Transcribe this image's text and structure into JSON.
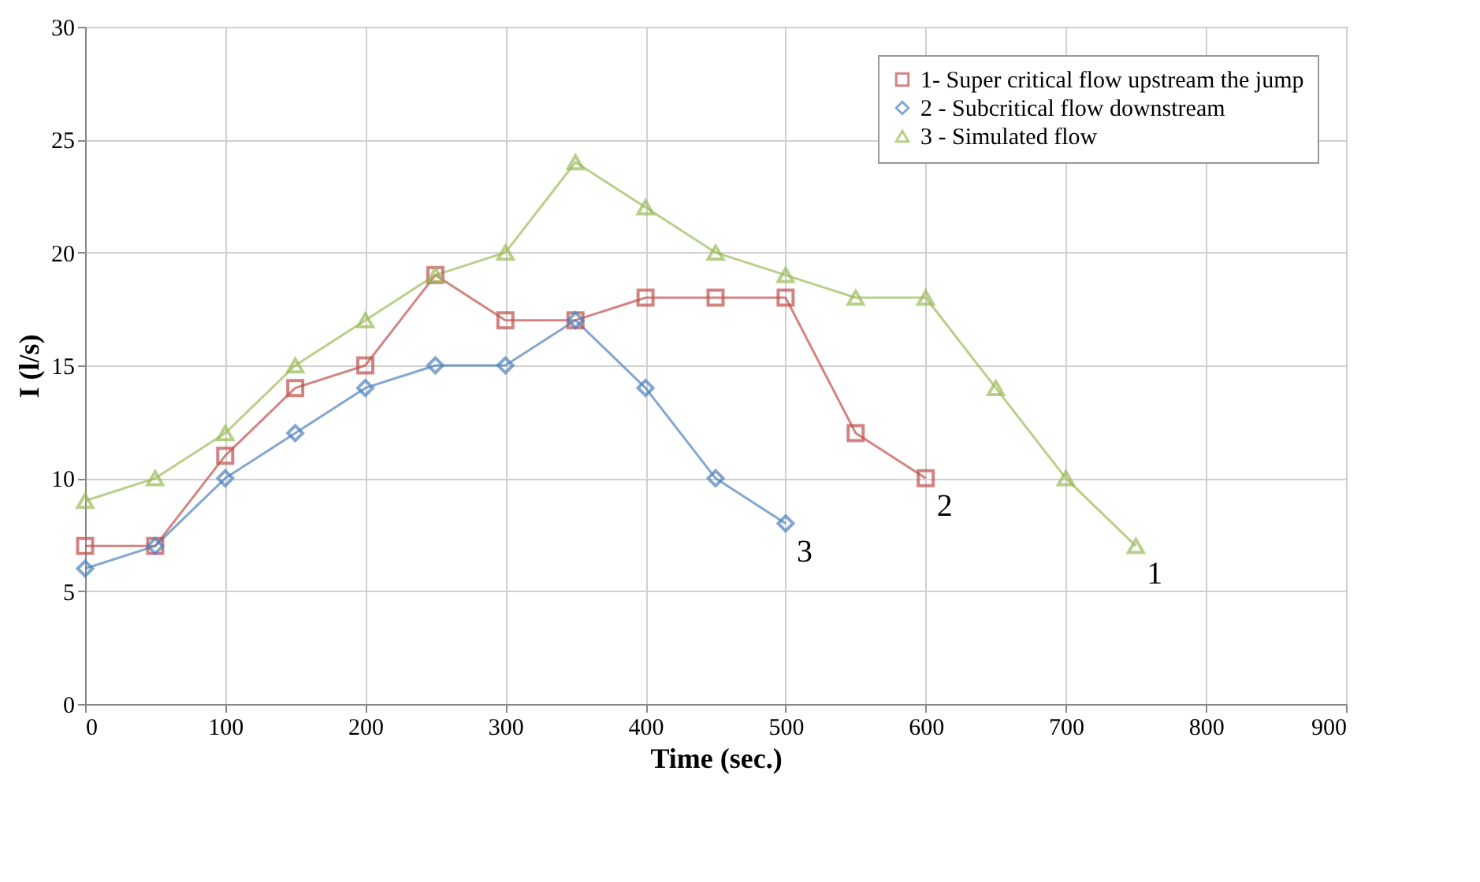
{
  "chart_data": {
    "type": "line",
    "xlabel": "Time (sec.)",
    "ylabel": "I (l/s)",
    "xlim": [
      0,
      900
    ],
    "ylim": [
      0,
      30
    ],
    "xticks": [
      0,
      100,
      200,
      300,
      400,
      500,
      600,
      700,
      800,
      900
    ],
    "yticks": [
      0,
      5,
      10,
      15,
      20,
      25,
      30
    ],
    "grid": true,
    "legend": "top right",
    "series": [
      {
        "name": "1- Super critical flow upstream the jump",
        "color": "#c0504d",
        "marker": "square",
        "x": [
          0,
          50,
          100,
          150,
          200,
          250,
          300,
          350,
          400,
          450,
          500,
          550,
          600
        ],
        "values": [
          7,
          7,
          11,
          14,
          15,
          19,
          17,
          17,
          18,
          18,
          18,
          12,
          10
        ]
      },
      {
        "name": "2 - Subcritical flow downstream",
        "color": "#4f81bd",
        "marker": "diamond",
        "x": [
          0,
          50,
          100,
          150,
          200,
          250,
          300,
          350,
          400,
          450,
          500
        ],
        "values": [
          6,
          7,
          10,
          12,
          14,
          15,
          15,
          17,
          14,
          10,
          8
        ]
      },
      {
        "name": "3 - Simulated flow",
        "color": "#9bbb59",
        "marker": "triangle",
        "x": [
          0,
          50,
          100,
          150,
          200,
          250,
          300,
          350,
          400,
          450,
          500,
          550,
          600,
          650,
          700,
          750
        ],
        "values": [
          9,
          10,
          12,
          15,
          17,
          19,
          20,
          24,
          22,
          20,
          19,
          18,
          18,
          14,
          10,
          7
        ]
      }
    ],
    "annotations": [
      {
        "text": "1",
        "x": 750,
        "y": 7
      },
      {
        "text": "2",
        "x": 600,
        "y": 10
      },
      {
        "text": "3",
        "x": 500,
        "y": 8
      }
    ]
  }
}
